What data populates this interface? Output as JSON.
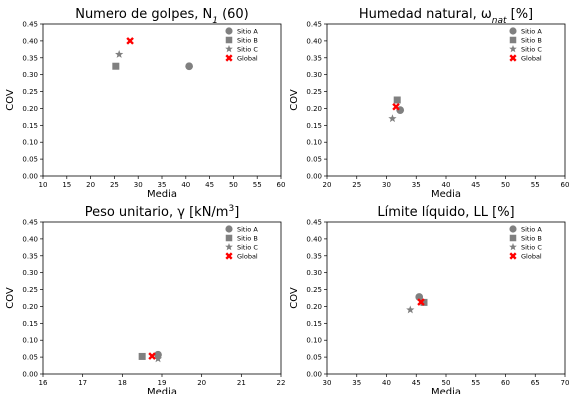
{
  "chart_data": [
    {
      "type": "scatter",
      "title": "Numero de golpes, N",
      "title_sub": "1",
      "title_suffix": " (60)",
      "xlabel": "Media",
      "ylabel": "COV",
      "xlim": [
        10,
        60
      ],
      "ylim": [
        0,
        0.45
      ],
      "xticks": [
        "10",
        "15",
        "20",
        "25",
        "30",
        "35",
        "40",
        "45",
        "50",
        "55",
        "60"
      ],
      "yticks": [
        "0.00",
        "0.05",
        "0.10",
        "0.15",
        "0.20",
        "0.25",
        "0.30",
        "0.35",
        "0.40",
        "0.45"
      ],
      "legend_position": "top-right",
      "grid": false,
      "series": [
        {
          "name": "Sitio A",
          "marker": "circle",
          "color": "#808080",
          "points": [
            [
              40.7,
              0.325
            ]
          ]
        },
        {
          "name": "Sitio B",
          "marker": "square",
          "color": "#808080",
          "points": [
            [
              25.3,
              0.325
            ]
          ]
        },
        {
          "name": "Sitio C",
          "marker": "star",
          "color": "#808080",
          "points": [
            [
              26.0,
              0.36
            ]
          ]
        },
        {
          "name": "Global",
          "marker": "x",
          "color": "#ff0000",
          "points": [
            [
              28.3,
              0.4
            ]
          ]
        }
      ]
    },
    {
      "type": "scatter",
      "title": "Humedad natural, ω",
      "title_sub": "nat",
      "title_suffix": " [%]",
      "xlabel": "Media",
      "ylabel": "COV",
      "xlim": [
        20,
        60
      ],
      "ylim": [
        0,
        0.45
      ],
      "xticks": [
        "20",
        "25",
        "30",
        "35",
        "40",
        "45",
        "50",
        "55",
        "60"
      ],
      "yticks": [
        "0.00",
        "0.05",
        "0.10",
        "0.15",
        "0.20",
        "0.25",
        "0.30",
        "0.35",
        "0.40",
        "0.45"
      ],
      "legend_position": "top-right",
      "grid": false,
      "series": [
        {
          "name": "Sitio A",
          "marker": "circle",
          "color": "#808080",
          "points": [
            [
              32.3,
              0.195
            ]
          ]
        },
        {
          "name": "Sitio B",
          "marker": "square",
          "color": "#808080",
          "points": [
            [
              31.8,
              0.225
            ]
          ]
        },
        {
          "name": "Sitio C",
          "marker": "star",
          "color": "#808080",
          "points": [
            [
              31.0,
              0.17
            ]
          ]
        },
        {
          "name": "Global",
          "marker": "x",
          "color": "#ff0000",
          "points": [
            [
              31.6,
              0.205
            ]
          ]
        }
      ]
    },
    {
      "type": "scatter",
      "title": "Peso unitario, γ [kN/m",
      "title_sup": "3",
      "title_suffix": "]",
      "xlabel": "Media",
      "ylabel": "COV",
      "xlim": [
        16,
        22
      ],
      "ylim": [
        0,
        0.45
      ],
      "xticks": [
        "16",
        "17",
        "18",
        "19",
        "20",
        "21",
        "22"
      ],
      "yticks": [
        "0.00",
        "0.05",
        "0.10",
        "0.15",
        "0.20",
        "0.25",
        "0.30",
        "0.35",
        "0.40",
        "0.45"
      ],
      "legend_position": "top-right",
      "grid": false,
      "series": [
        {
          "name": "Sitio A",
          "marker": "circle",
          "color": "#808080",
          "points": [
            [
              18.9,
              0.057
            ]
          ]
        },
        {
          "name": "Sitio B",
          "marker": "square",
          "color": "#808080",
          "points": [
            [
              18.5,
              0.052
            ]
          ]
        },
        {
          "name": "Sitio C",
          "marker": "star",
          "color": "#808080",
          "points": [
            [
              18.9,
              0.045
            ]
          ]
        },
        {
          "name": "Global",
          "marker": "x",
          "color": "#ff0000",
          "points": [
            [
              18.75,
              0.053
            ]
          ]
        }
      ]
    },
    {
      "type": "scatter",
      "title": "Límite líquido, LL [%]",
      "xlabel": "Media",
      "ylabel": "COV",
      "xlim": [
        30,
        70
      ],
      "ylim": [
        0,
        0.45
      ],
      "xticks": [
        "30",
        "35",
        "40",
        "45",
        "50",
        "55",
        "60",
        "65",
        "70"
      ],
      "yticks": [
        "0.00",
        "0.05",
        "0.10",
        "0.15",
        "0.20",
        "0.25",
        "0.30",
        "0.35",
        "0.40",
        "0.45"
      ],
      "legend_position": "top-right",
      "grid": false,
      "series": [
        {
          "name": "Sitio A",
          "marker": "circle",
          "color": "#808080",
          "points": [
            [
              45.5,
              0.228
            ]
          ]
        },
        {
          "name": "Sitio B",
          "marker": "square",
          "color": "#808080",
          "points": [
            [
              46.3,
              0.212
            ]
          ]
        },
        {
          "name": "Sitio C",
          "marker": "star",
          "color": "#808080",
          "points": [
            [
              44.0,
              0.19
            ]
          ]
        },
        {
          "name": "Global",
          "marker": "x",
          "color": "#ff0000",
          "points": [
            [
              45.8,
              0.213
            ]
          ]
        }
      ]
    }
  ]
}
